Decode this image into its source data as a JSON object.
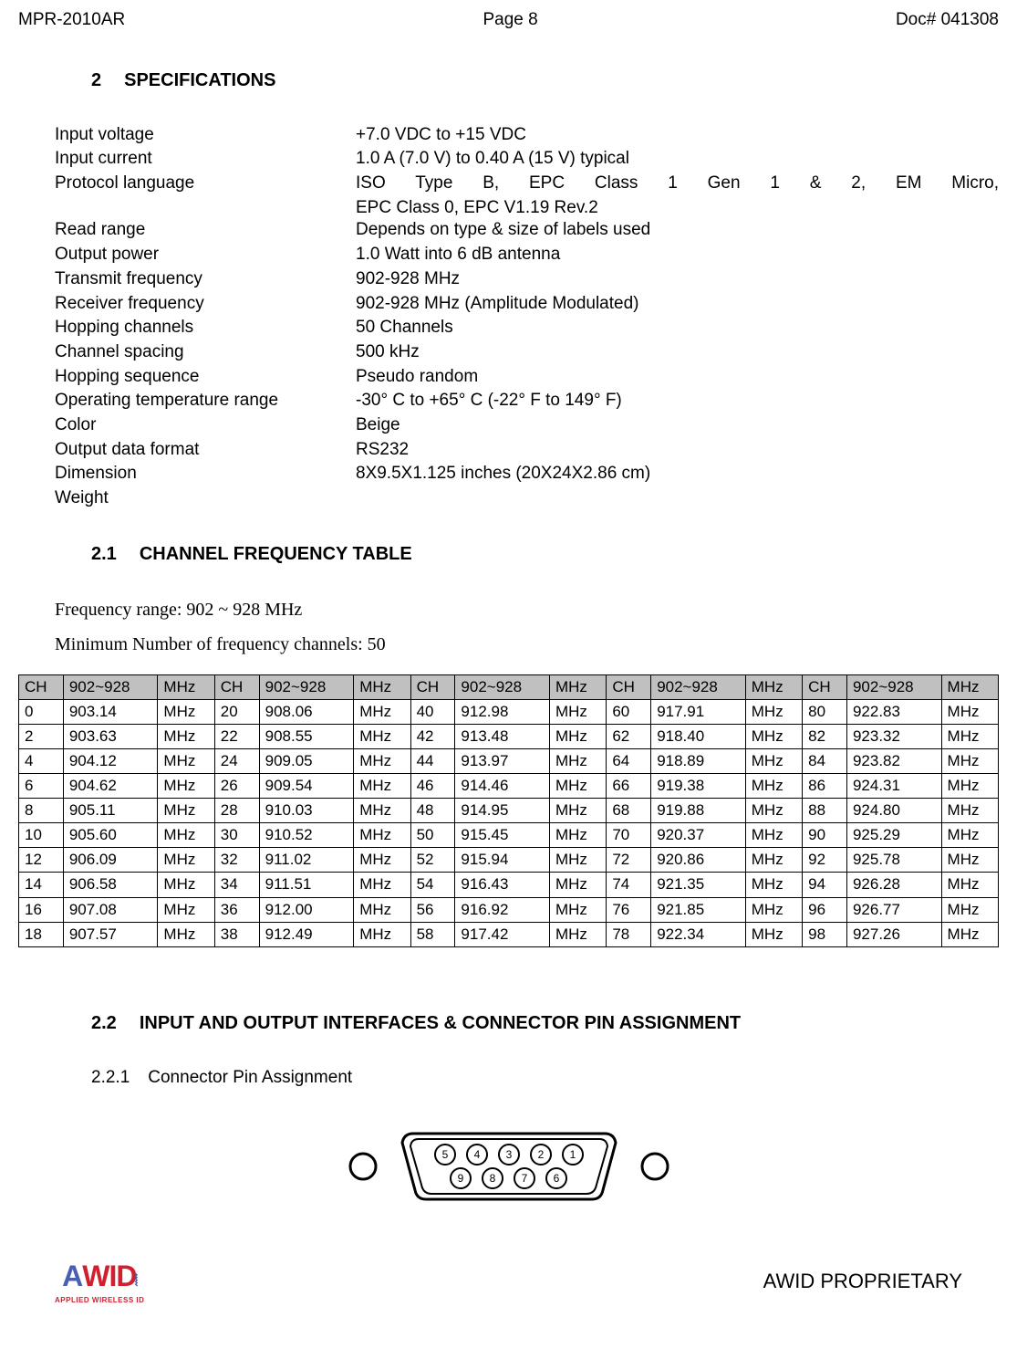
{
  "header": {
    "model": "MPR-2010AR",
    "page": "Page 8",
    "doc": "Doc# 041308"
  },
  "section2": {
    "num": "2",
    "title": "SPECIFICATIONS"
  },
  "specs": [
    {
      "label": "Input voltage",
      "value": "+7.0 VDC to +15 VDC"
    },
    {
      "label": "Input current",
      "value": "1.0 A (7.0 V) to 0.40 A (15 V) typical"
    },
    {
      "label": "Protocol language",
      "value": "ISO Type B, EPC Class 1 Gen 1 & 2, EM Micro,",
      "justify": true,
      "cont": "EPC Class 0, EPC V1.19 Rev.2"
    },
    {
      "label": "Read range",
      "value": "Depends on type & size of labels used"
    },
    {
      "label": "Output power",
      "value": "1.0 Watt into 6 dB antenna"
    },
    {
      "label": "Transmit frequency",
      "value": "902-928 MHz"
    },
    {
      "label": "Receiver frequency",
      "value": "902-928 MHz (Amplitude Modulated)"
    },
    {
      "label": "Hopping channels",
      "value": "50 Channels"
    },
    {
      "label": "Channel spacing",
      "value": "500 kHz"
    },
    {
      "label": "Hopping sequence",
      "value": "Pseudo random"
    },
    {
      "label": "Operating temperature range",
      "value": "-30° C to +65° C (-22° F to 149° F)"
    },
    {
      "label": "Color",
      "value": "Beige"
    },
    {
      "label": "Output data format",
      "value": "RS232"
    },
    {
      "label": "Dimension",
      "value": "8X9.5X1.125 inches (20X24X2.86 cm)"
    },
    {
      "label": "Weight",
      "value": ""
    }
  ],
  "section21": {
    "num": "2.1",
    "title": "CHANNEL FREQUENCY TABLE"
  },
  "freq_notes": {
    "range": "Frequency range: 902 ~ 928 MHz",
    "min_ch": "Minimum Number of frequency channels: 50"
  },
  "freq_table": {
    "header_cells": [
      "CH",
      "902~928",
      "MHz",
      "CH",
      "902~928",
      "MHz",
      "CH",
      "902~928",
      "MHz",
      "CH",
      "902~928",
      "MHz",
      "CH",
      "902~928",
      "MHz"
    ],
    "header_bg": "#c0c0c0",
    "border_color": "#000000",
    "rows": [
      [
        "0",
        "903.14",
        "MHz",
        "20",
        "908.06",
        "MHz",
        "40",
        "912.98",
        "MHz",
        "60",
        "917.91",
        "MHz",
        "80",
        "922.83",
        "MHz"
      ],
      [
        "2",
        "903.63",
        "MHz",
        "22",
        "908.55",
        "MHz",
        "42",
        "913.48",
        "MHz",
        "62",
        "918.40",
        "MHz",
        "82",
        "923.32",
        "MHz"
      ],
      [
        "4",
        "904.12",
        "MHz",
        "24",
        "909.05",
        "MHz",
        "44",
        "913.97",
        "MHz",
        "64",
        "918.89",
        "MHz",
        "84",
        "923.82",
        "MHz"
      ],
      [
        "6",
        "904.62",
        "MHz",
        "26",
        "909.54",
        "MHz",
        "46",
        "914.46",
        "MHz",
        "66",
        "919.38",
        "MHz",
        "86",
        "924.31",
        "MHz"
      ],
      [
        "8",
        "905.11",
        "MHz",
        "28",
        "910.03",
        "MHz",
        "48",
        "914.95",
        "MHz",
        "68",
        "919.88",
        "MHz",
        "88",
        "924.80",
        "MHz"
      ],
      [
        "10",
        "905.60",
        "MHz",
        "30",
        "910.52",
        "MHz",
        "50",
        "915.45",
        "MHz",
        "70",
        "920.37",
        "MHz",
        "90",
        "925.29",
        "MHz"
      ],
      [
        "12",
        "906.09",
        "MHz",
        "32",
        "911.02",
        "MHz",
        "52",
        "915.94",
        "MHz",
        "72",
        "920.86",
        "MHz",
        "92",
        "925.78",
        "MHz"
      ],
      [
        "14",
        "906.58",
        "MHz",
        "34",
        "911.51",
        "MHz",
        "54",
        "916.43",
        "MHz",
        "74",
        "921.35",
        "MHz",
        "94",
        "926.28",
        "MHz"
      ],
      [
        "16",
        "907.08",
        "MHz",
        "36",
        "912.00",
        "MHz",
        "56",
        "916.92",
        "MHz",
        "76",
        "921.85",
        "MHz",
        "96",
        "926.77",
        "MHz"
      ],
      [
        "18",
        "907.57",
        "MHz",
        "38",
        "912.49",
        "MHz",
        "58",
        "917.42",
        "MHz",
        "78",
        "922.34",
        "MHz",
        "98",
        "927.26",
        "MHz"
      ]
    ]
  },
  "section22": {
    "num": "2.2",
    "title": "INPUT AND OUTPUT INTERFACES & CONNECTOR PIN ASSIGNMENT"
  },
  "section221": {
    "num": "2.2.1",
    "title": "Connector Pin Assignment"
  },
  "connector": {
    "top_pins": [
      "5",
      "4",
      "3",
      "2",
      "1"
    ],
    "bottom_pins": [
      "9",
      "8",
      "7",
      "6"
    ],
    "stroke": "#000000",
    "fill": "#ffffff",
    "pin_r": 11,
    "screw_r": 14
  },
  "footer": {
    "logo_sub": "APPLIED WIRELESS ID",
    "proprietary": "AWID PROPRIETARY"
  }
}
